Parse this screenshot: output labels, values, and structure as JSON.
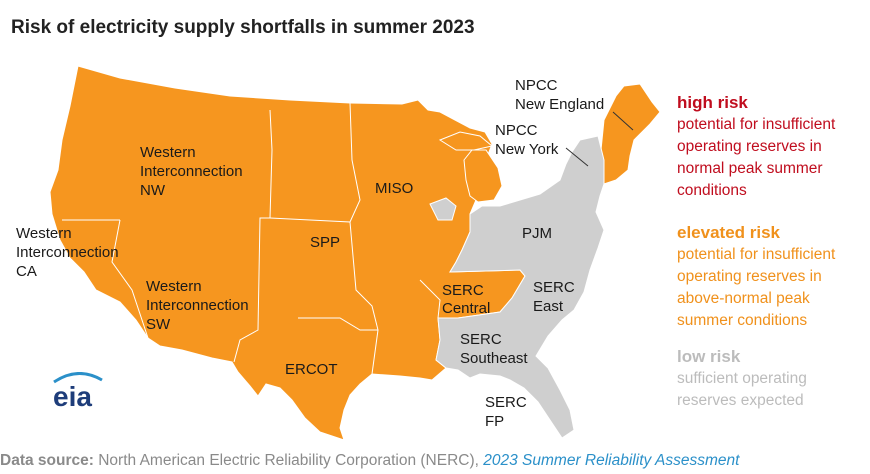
{
  "title": "Risk of electricity supply shortfalls in summer 2023",
  "colors": {
    "high": "#c00d1e",
    "elevated": "#f0911c",
    "low": "#bcbcbc",
    "map_elevated": "#f6961f",
    "map_low": "#cfcfcf"
  },
  "regions": {
    "wcnw": [
      "Western",
      "Interconnection",
      "NW"
    ],
    "wcca": [
      "Western",
      "Interconnection",
      "CA"
    ],
    "wcsw": [
      "Western",
      "Interconnection",
      "SW"
    ],
    "spp": "SPP",
    "miso": "MISO",
    "ercot": "ERCOT",
    "npcc_ne": [
      "NPCC",
      "New England"
    ],
    "npcc_ny": [
      "NPCC",
      "New York"
    ],
    "pjm": "PJM",
    "serc_central": [
      "SERC",
      "Central"
    ],
    "serc_east": [
      "SERC",
      "East"
    ],
    "serc_se": [
      "SERC",
      "Southeast"
    ],
    "serc_fp": [
      "SERC",
      "FP"
    ]
  },
  "legend": {
    "high": {
      "title": "high risk",
      "desc": "potential for insufficient operating reserves in normal peak summer conditions"
    },
    "elevated": {
      "title": "elevated risk",
      "desc": "potential for insufficient operating reserves in above-normal peak summer conditions"
    },
    "low": {
      "title": "low risk",
      "desc": "sufficient operating reserves expected"
    }
  },
  "footer": {
    "label": "Data source:",
    "text": "North American Electric Reliability Corporation (NERC),",
    "source": "2023 Summer Reliability Assessment"
  },
  "logo_text": "eia"
}
